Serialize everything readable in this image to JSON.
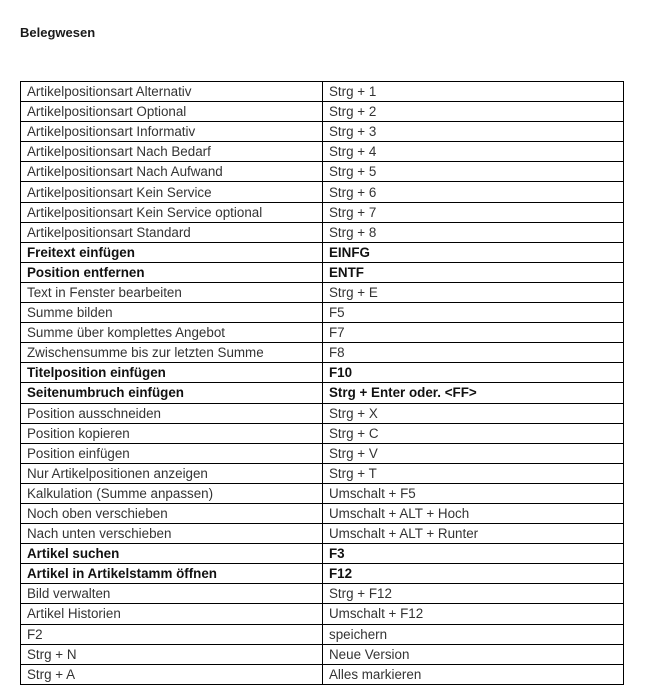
{
  "title": "Belegwesen",
  "rows": [
    {
      "action": "Artikelpositionsart Alternativ",
      "shortcut": "Strg + 1",
      "bold": false
    },
    {
      "action": "Artikelpositionsart Optional",
      "shortcut": "Strg + 2",
      "bold": false
    },
    {
      "action": "Artikelpositionsart Informativ",
      "shortcut": "Strg + 3",
      "bold": false
    },
    {
      "action": "Artikelpositionsart Nach Bedarf",
      "shortcut": "Strg + 4",
      "bold": false
    },
    {
      "action": "Artikelpositionsart Nach Aufwand",
      "shortcut": "Strg + 5",
      "bold": false
    },
    {
      "action": "Artikelpositionsart Kein Service",
      "shortcut": "Strg + 6",
      "bold": false
    },
    {
      "action": "Artikelpositionsart Kein Service optional",
      "shortcut": "Strg + 7",
      "bold": false
    },
    {
      "action": "Artikelpositionsart Standard",
      "shortcut": "Strg + 8",
      "bold": false
    },
    {
      "action": "Freitext einfügen",
      "shortcut": "EINFG",
      "bold": true
    },
    {
      "action": "Position entfernen",
      "shortcut": "ENTF",
      "bold": true
    },
    {
      "action": "Text in Fenster bearbeiten",
      "shortcut": "Strg + E",
      "bold": false
    },
    {
      "action": "Summe bilden",
      "shortcut": "F5",
      "bold": false
    },
    {
      "action": "Summe über komplettes Angebot",
      "shortcut": "F7",
      "bold": false
    },
    {
      "action": "Zwischensumme bis zur letzten Summe",
      "shortcut": "F8",
      "bold": false
    },
    {
      "action": "Titelposition einfügen",
      "shortcut": "F10",
      "bold": true
    },
    {
      "action": "Seitenumbruch einfügen",
      "shortcut": "Strg + Enter oder. <FF>",
      "bold": true
    },
    {
      "action": "Position ausschneiden",
      "shortcut": "Strg + X",
      "bold": false
    },
    {
      "action": "Position kopieren",
      "shortcut": "Strg + C",
      "bold": false
    },
    {
      "action": "Position einfügen",
      "shortcut": "Strg + V",
      "bold": false
    },
    {
      "action": "Nur Artikelpositionen anzeigen",
      "shortcut": "Strg + T",
      "bold": false
    },
    {
      "action": "Kalkulation (Summe anpassen)",
      "shortcut": "Umschalt + F5",
      "bold": false
    },
    {
      "action": "Noch oben verschieben",
      "shortcut": "Umschalt + ALT + Hoch",
      "bold": false
    },
    {
      "action": "Nach unten verschieben",
      "shortcut": "Umschalt + ALT + Runter",
      "bold": false
    },
    {
      "action": "Artikel suchen",
      "shortcut": "F3",
      "bold": true
    },
    {
      "action": "Artikel in Artikelstamm öffnen",
      "shortcut": "F12",
      "bold": true
    },
    {
      "action": "Bild verwalten",
      "shortcut": "Strg + F12",
      "bold": false
    },
    {
      "action": "Artikel Historien",
      "shortcut": "Umschalt + F12",
      "bold": false
    },
    {
      "action": "F2",
      "shortcut": "speichern",
      "bold": false
    },
    {
      "action": "Strg + N",
      "shortcut": "Neue Version",
      "bold": false
    },
    {
      "action": "Strg + A",
      "shortcut": "Alles markieren",
      "bold": false
    }
  ]
}
